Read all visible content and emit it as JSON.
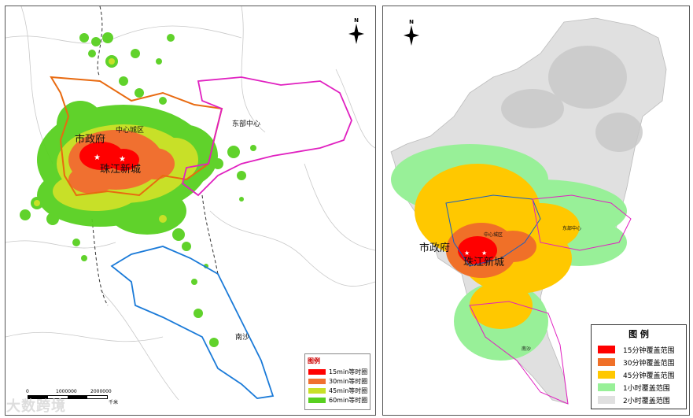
{
  "left_map": {
    "labels": {
      "city_hall": "市政府",
      "zhujiang": "珠江新城",
      "center_district": "中心城区",
      "east_center": "东部中心",
      "nansha": "南沙"
    },
    "legend": {
      "title": "图例",
      "items": [
        {
          "label": "15min等时圈",
          "color": "#ff0000"
        },
        {
          "label": "30min等时圈",
          "color": "#f07030"
        },
        {
          "label": "45min等时圈",
          "color": "#c8e028"
        },
        {
          "label": "60min等时圈",
          "color": "#58d020"
        }
      ]
    },
    "north": "N",
    "scale": {
      "labels": [
        "0",
        "1000000",
        "2000000"
      ],
      "unit": "千米"
    }
  },
  "right_map": {
    "labels": {
      "city_hall": "市政府",
      "zhujiang": "珠江新城",
      "center_district": "中心城区",
      "east_center": "东部中心",
      "nansha": "南沙"
    },
    "legend": {
      "title": "图 例",
      "items": [
        {
          "label": "15分钟覆盖范围",
          "color": "#ff0000"
        },
        {
          "label": "30分钟覆盖范围",
          "color": "#f07028"
        },
        {
          "label": "45分钟覆盖范围",
          "color": "#ffc800"
        },
        {
          "label": "1小时覆盖范围",
          "color": "#98f098"
        },
        {
          "label": "2小时覆盖范围",
          "color": "#e0e0e0"
        }
      ]
    },
    "north": "N"
  },
  "watermark": "大数跨境"
}
